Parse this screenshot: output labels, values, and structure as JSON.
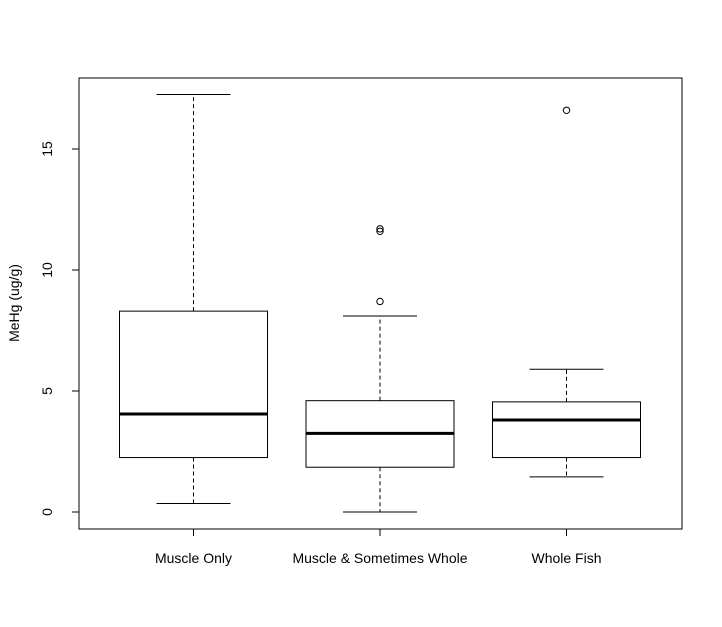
{
  "chart_data": {
    "type": "boxplot",
    "title": "",
    "xlabel": "",
    "ylabel": "MeHg (ug/g)",
    "ylim": [
      -0.7,
      17.9
    ],
    "yticks": [
      0,
      5,
      10,
      15
    ],
    "ytick_labels": [
      "0",
      "5",
      "10",
      "15"
    ],
    "categories": [
      "Muscle Only",
      "Muscle & Sometimes Whole",
      "Whole Fish"
    ],
    "boxes": [
      {
        "category": "Muscle Only",
        "whisker_low": 0.35,
        "q1": 2.25,
        "median": 4.05,
        "q3": 8.3,
        "whisker_high": 17.25,
        "outliers": []
      },
      {
        "category": "Muscle & Sometimes Whole",
        "whisker_low": 0.0,
        "q1": 1.85,
        "median": 3.25,
        "q3": 4.6,
        "whisker_high": 8.1,
        "outliers": [
          8.7,
          11.6,
          11.7
        ]
      },
      {
        "category": "Whole Fish",
        "whisker_low": 1.45,
        "q1": 2.25,
        "median": 3.8,
        "q3": 4.55,
        "whisker_high": 5.9,
        "outliers": [
          16.6
        ]
      }
    ],
    "grid": false,
    "legend": "none"
  }
}
